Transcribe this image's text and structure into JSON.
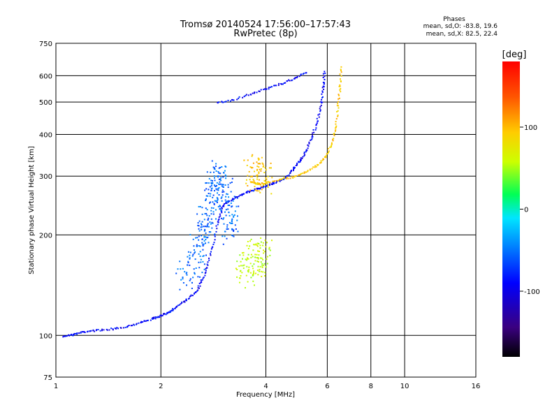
{
  "chart_data": {
    "type": "scatter",
    "title": "Tromsø 20140524 17:56:00–17:57:43",
    "subtitle": "RwPretec (8p)",
    "xlabel": "Frequency [MHz]",
    "ylabel": "Stationary phase Virtual Height [km]",
    "xscale": "log",
    "yscale": "log",
    "xlim": [
      1,
      16
    ],
    "ylim": [
      75,
      750
    ],
    "xticks": [
      1,
      2,
      4,
      6,
      8,
      10,
      16
    ],
    "yticks": [
      75,
      100,
      200,
      300,
      400,
      500,
      600,
      750
    ],
    "grid": true,
    "stats": {
      "header": "Phases",
      "o_line": "mean, sd,O: -83.8, 19.6",
      "x_line": "mean, sd,X:  82.5, 22.4"
    },
    "colorbar": {
      "label": "[deg]",
      "ticks": [
        100,
        0,
        -100
      ],
      "range": [
        -180,
        180
      ],
      "palette": [
        "#000000",
        "#3a0080",
        "#0000ff",
        "#0088ff",
        "#00e5ff",
        "#00ff55",
        "#ccff00",
        "#ffcc00",
        "#ff5500",
        "#ff0000"
      ]
    },
    "series": [
      {
        "trace": "o-mode lower trace",
        "phase": -100,
        "x": [
          1.05,
          1.12,
          1.2,
          1.3,
          1.45,
          1.6,
          1.75,
          1.9,
          2.0,
          2.1,
          2.2,
          2.35,
          2.5,
          2.6,
          2.7,
          2.8,
          2.9,
          3.0,
          3.2,
          3.4,
          3.6,
          3.8,
          4.0,
          4.2,
          4.4
        ],
        "y": [
          100,
          101,
          103,
          104,
          105,
          107,
          110,
          113,
          115,
          118,
          122,
          128,
          135,
          145,
          160,
          185,
          220,
          245,
          258,
          266,
          272,
          277,
          282,
          287,
          293
        ]
      },
      {
        "trace": "o-mode upper trace",
        "phase": -100,
        "x": [
          4.4,
          4.6,
          4.8,
          5.0,
          5.2,
          5.4,
          5.6,
          5.75,
          5.82,
          5.86
        ],
        "y": [
          293,
          302,
          318,
          335,
          360,
          395,
          440,
          500,
          560,
          620
        ]
      },
      {
        "trace": "x-mode trace",
        "phase": 100,
        "x": [
          3.6,
          3.8,
          4.0,
          4.4,
          4.8,
          5.2,
          5.6,
          5.9,
          6.15,
          6.3,
          6.42,
          6.5,
          6.55
        ],
        "y": [
          290,
          285,
          288,
          295,
          300,
          310,
          325,
          345,
          375,
          420,
          490,
          560,
          640
        ]
      },
      {
        "trace": "high-altitude branch",
        "phase": -100,
        "x": [
          2.9,
          3.2,
          3.6,
          4.0,
          4.4,
          4.8,
          5.2
        ],
        "y": [
          500,
          510,
          530,
          550,
          570,
          590,
          615
        ]
      },
      {
        "trace": "spread-F cloud",
        "phase": -70,
        "x": [
          2.3,
          2.5,
          2.6,
          2.7,
          2.8,
          2.9,
          3.0,
          3.1,
          3.2
        ],
        "y": [
          150,
          170,
          200,
          230,
          260,
          300,
          280,
          240,
          200
        ]
      },
      {
        "trace": "x-mode spread cluster",
        "phase": 60,
        "x": [
          3.4,
          3.6,
          3.8,
          4.0
        ],
        "y": [
          155,
          165,
          175,
          170
        ]
      },
      {
        "trace": "x-mode high cluster",
        "phase": 100,
        "x": [
          3.6,
          3.8,
          4.0
        ],
        "y": [
          300,
          310,
          295
        ]
      }
    ]
  }
}
